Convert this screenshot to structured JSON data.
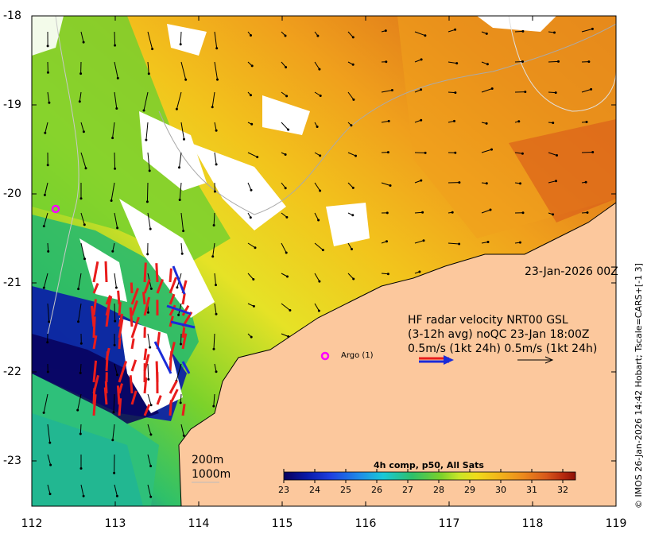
{
  "map": {
    "lon_ticks": [
      "112",
      "113",
      "114",
      "115",
      "116",
      "117",
      "118",
      "119"
    ],
    "lat_ticks": [
      "-18",
      "-19",
      "-20",
      "-21",
      "-22",
      "-23"
    ],
    "lon_range": [
      112,
      119
    ],
    "lat_range": [
      -23.5,
      -18
    ],
    "land_color": "#fcc89d",
    "nodata_color": "#ffffff"
  },
  "date_label": "23-Jan-2026 00Z",
  "hf_radar": {
    "line1": "HF radar velocity  NRT00 GSL",
    "line2": "(3-12h avg) noQC 23-Jan 18:00Z",
    "line3": "0.5m/s (1kt 24h)  0.5m/s (1kt 24h)",
    "qc_colors": [
      "#1a2bd8",
      "#e81c1c"
    ]
  },
  "argo": {
    "label": "Argo (1)",
    "color": "#ff00ff"
  },
  "isobaths": {
    "line1": "200m",
    "line2": "1000m"
  },
  "colorbar": {
    "title": "4h comp, p50, All Sats",
    "ticks": [
      "23",
      "24",
      "25",
      "26",
      "27",
      "28",
      "29",
      "30",
      "31",
      "32"
    ],
    "range": [
      23,
      32.5
    ],
    "colors": [
      "#08005c",
      "#0a1aa8",
      "#1e3fe0",
      "#1e8ce8",
      "#18c8d8",
      "#2ec06a",
      "#7cd22a",
      "#c8e628",
      "#f0dc1a",
      "#f2b41a",
      "#ec8a1c",
      "#d8581a",
      "#b4280e",
      "#8c1006"
    ]
  },
  "credit": "© IMOS 26-Jan-2026 14:42 Hobart; Tscale=CARS+[-1 3]"
}
